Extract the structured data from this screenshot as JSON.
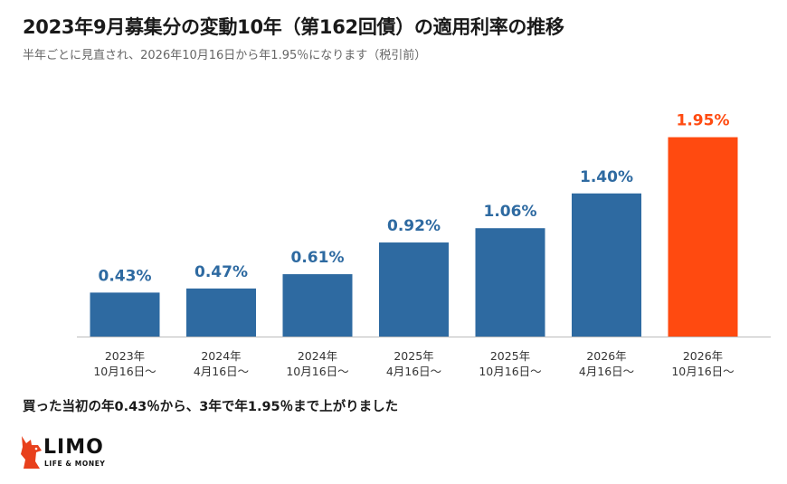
{
  "title": "2023年9月募集分の変動10年（第162回債）の適用利率の推移",
  "subtitle": "半年ごとに見直され、2026年10月16日から年1.95％になります（税引前）",
  "note": "買った当初の年0.43％から、3年で年1.95％まで上がりました",
  "logo": {
    "name": "LIMO",
    "tagline": "LIFE & MONEY"
  },
  "colors": {
    "bar": "#2E6AA1",
    "highlight": "#FF4A10",
    "label": "#2E6AA1",
    "axis": "#bbbbbb"
  },
  "chart_data": {
    "type": "bar",
    "title": "2023年9月募集分の変動10年（第162回債）の適用利率の推移",
    "xlabel": "",
    "ylabel": "",
    "ylim": [
      0,
      2.0
    ],
    "categories": [
      [
        "2023年",
        "10月16日～"
      ],
      [
        "2024年",
        "4月16日～"
      ],
      [
        "2024年",
        "10月16日～"
      ],
      [
        "2025年",
        "4月16日～"
      ],
      [
        "2025年",
        "10月16日～"
      ],
      [
        "2026年",
        "4月16日～"
      ],
      [
        "2026年",
        "10月16日～"
      ]
    ],
    "values": [
      0.43,
      0.47,
      0.61,
      0.92,
      1.06,
      1.4,
      1.95
    ],
    "data_labels": [
      "0.43%",
      "0.47%",
      "0.61%",
      "0.92%",
      "1.06%",
      "1.40%",
      "1.95%"
    ],
    "highlight_index": 6,
    "grid": false,
    "legend": "none"
  }
}
